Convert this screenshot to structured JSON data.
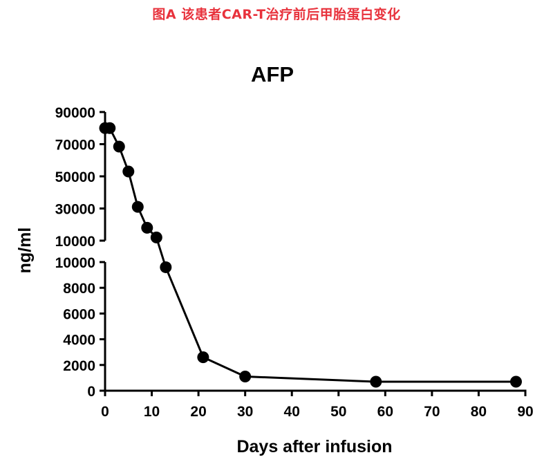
{
  "caption": {
    "text": "图A 该患者CAR-T治疗前后甲胎蛋白变化",
    "color": "#e8323c"
  },
  "chart_data": {
    "type": "line",
    "title": "AFP",
    "xlabel": "Days after infusion",
    "ylabel": "ng/ml",
    "xlim": [
      0,
      90
    ],
    "xticks": [
      0,
      10,
      20,
      30,
      40,
      50,
      60,
      70,
      80,
      90
    ],
    "y_axis_break": true,
    "y_lower_segment": {
      "ylim": [
        0,
        10000
      ],
      "ticks": [
        0,
        2000,
        4000,
        6000,
        8000,
        10000
      ]
    },
    "y_upper_segment": {
      "ylim": [
        10000,
        90000
      ],
      "ticks": [
        10000,
        30000,
        50000,
        70000,
        90000
      ]
    },
    "grid": false,
    "marker": "filled-circle",
    "color": "#000000",
    "series": [
      {
        "x": [
          0,
          1,
          3,
          5,
          7,
          9,
          11,
          13,
          21,
          30,
          58,
          88
        ],
        "y": [
          80000,
          80000,
          68500,
          53000,
          31000,
          18000,
          12000,
          9600,
          2600,
          1100,
          700,
          700
        ]
      }
    ]
  }
}
